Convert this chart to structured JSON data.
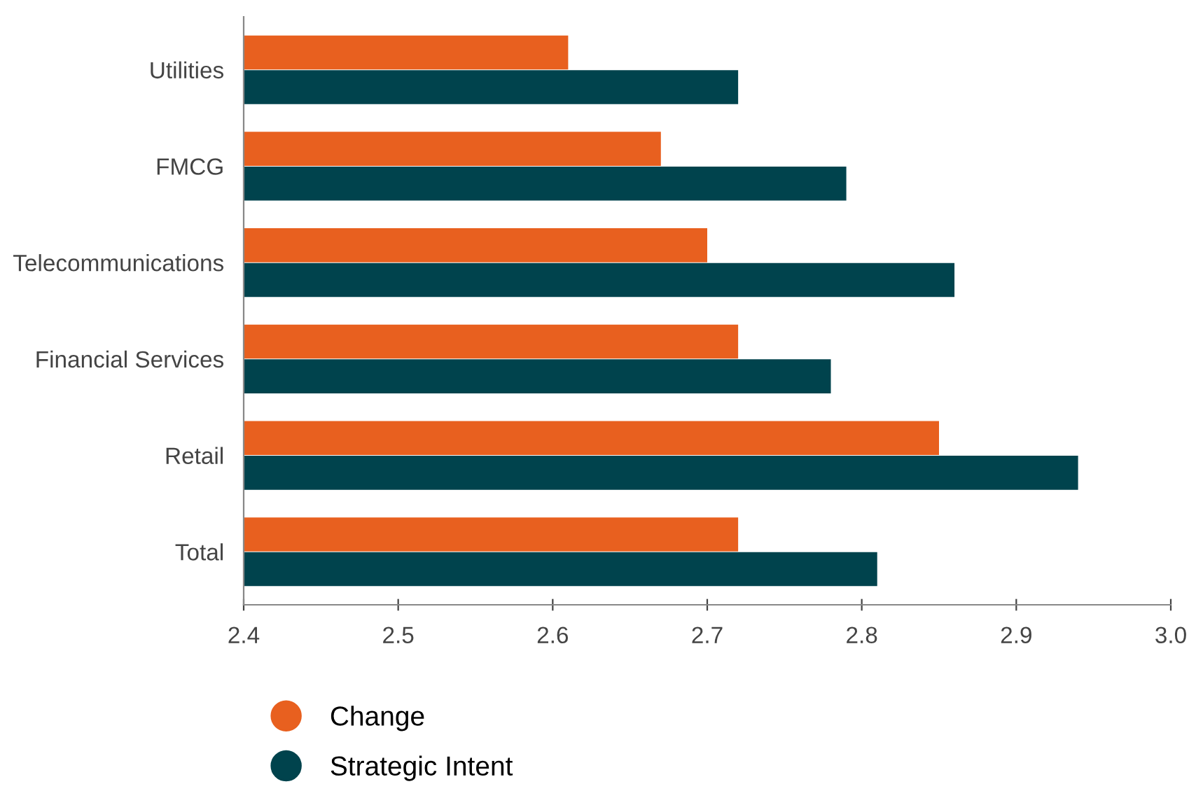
{
  "chart_data": {
    "type": "bar",
    "orientation": "horizontal",
    "categories": [
      "Utilities",
      "FMCG",
      "Telecommunications",
      "Financial Services",
      "Retail",
      "Total"
    ],
    "series": [
      {
        "name": "Change",
        "color": "#e8601f",
        "values": [
          2.61,
          2.67,
          2.7,
          2.72,
          2.85,
          2.72
        ]
      },
      {
        "name": "Strategic Intent",
        "color": "#00434d",
        "values": [
          2.72,
          2.79,
          2.86,
          2.78,
          2.94,
          2.81
        ]
      }
    ],
    "xlim": [
      2.4,
      3.0
    ],
    "xticks": [
      {
        "value": 2.4,
        "label": "2.4"
      },
      {
        "value": 2.5,
        "label": "2.5"
      },
      {
        "value": 2.6,
        "label": "2.6"
      },
      {
        "value": 2.7,
        "label": "2.7"
      },
      {
        "value": 2.8,
        "label": "2.8"
      },
      {
        "value": 2.9,
        "label": "2.9"
      },
      {
        "value": 3.0,
        "label": "3.0"
      }
    ],
    "grid": false,
    "legend": "bottom left"
  }
}
